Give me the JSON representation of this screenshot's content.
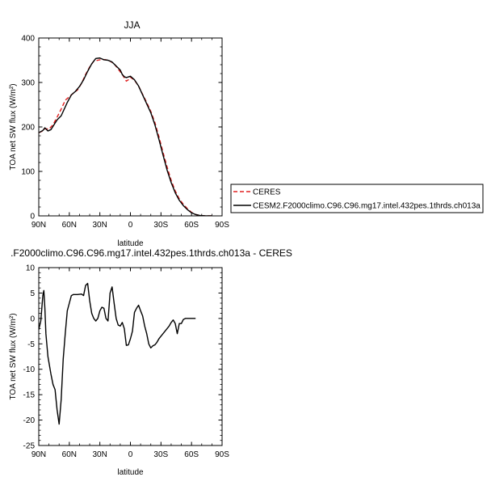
{
  "chart_data": [
    {
      "type": "line",
      "title": "JJA",
      "xlabel": "latitude",
      "ylabel": "TOA net SW flux (W/m²)",
      "x_ticks": [
        "90N",
        "60N",
        "30N",
        "0",
        "30S",
        "60S",
        "90S"
      ],
      "x_tick_values": [
        90,
        60,
        30,
        0,
        -30,
        -60,
        -90
      ],
      "y_ticks": [
        "0",
        "100",
        "200",
        "300",
        "400"
      ],
      "xlim": [
        90,
        -90
      ],
      "ylim": [
        0,
        400
      ],
      "legend_position": "right",
      "series": [
        {
          "name": "CERES",
          "color": "#e02020",
          "dash": "dashed",
          "points": [
            [
              90,
              187
            ],
            [
              86,
              191
            ],
            [
              84,
              196
            ],
            [
              80,
              195
            ],
            [
              76,
              205
            ],
            [
              72,
              222
            ],
            [
              68,
              240
            ],
            [
              64,
              260
            ],
            [
              60,
              268
            ],
            [
              56,
              276
            ],
            [
              52,
              283
            ],
            [
              48,
              298
            ],
            [
              44,
              318
            ],
            [
              40,
              335
            ],
            [
              36,
              348
            ],
            [
              32,
              350
            ],
            [
              28,
              352
            ],
            [
              24,
              351
            ],
            [
              20,
              348
            ],
            [
              16,
              342
            ],
            [
              12,
              330
            ],
            [
              8,
              318
            ],
            [
              4,
              303
            ],
            [
              2,
              306
            ],
            [
              0,
              312
            ],
            [
              -4,
              305
            ],
            [
              -8,
              292
            ],
            [
              -12,
              273
            ],
            [
              -16,
              255
            ],
            [
              -20,
              235
            ],
            [
              -24,
              210
            ],
            [
              -28,
              178
            ],
            [
              -32,
              143
            ],
            [
              -36,
              110
            ],
            [
              -40,
              80
            ],
            [
              -44,
              56
            ],
            [
              -48,
              38
            ],
            [
              -52,
              26
            ],
            [
              -56,
              16
            ],
            [
              -60,
              8
            ],
            [
              -64,
              3
            ],
            [
              -68,
              1
            ],
            [
              -74,
              0
            ],
            [
              -80,
              0
            ]
          ]
        },
        {
          "name": "CESM2.F2000climo.C96.C96.mg17.intel.432pes.1thrds.ch013a",
          "color": "#000000",
          "dash": "solid",
          "points": [
            [
              90,
              187
            ],
            [
              86,
              192
            ],
            [
              84,
              198
            ],
            [
              81,
              191
            ],
            [
              78,
              194
            ],
            [
              75,
              205
            ],
            [
              72,
              216
            ],
            [
              68,
              225
            ],
            [
              66,
              235
            ],
            [
              62,
              255
            ],
            [
              58,
              272
            ],
            [
              54,
              280
            ],
            [
              50,
              291
            ],
            [
              46,
              306
            ],
            [
              42,
              325
            ],
            [
              38,
              342
            ],
            [
              34,
              354
            ],
            [
              30,
              355
            ],
            [
              26,
              351
            ],
            [
              22,
              350
            ],
            [
              18,
              346
            ],
            [
              14,
              337
            ],
            [
              10,
              328
            ],
            [
              8,
              318
            ],
            [
              6,
              313
            ],
            [
              4,
              311
            ],
            [
              0,
              314
            ],
            [
              -4,
              306
            ],
            [
              -8,
              292
            ],
            [
              -12,
              272
            ],
            [
              -16,
              252
            ],
            [
              -20,
              232
            ],
            [
              -24,
              205
            ],
            [
              -28,
              172
            ],
            [
              -32,
              137
            ],
            [
              -36,
              103
            ],
            [
              -40,
              75
            ],
            [
              -44,
              52
            ],
            [
              -48,
              35
            ],
            [
              -52,
              23
            ],
            [
              -56,
              14
            ],
            [
              -60,
              7
            ],
            [
              -64,
              3
            ],
            [
              -68,
              1
            ],
            [
              -74,
              0
            ],
            [
              -80,
              0
            ]
          ]
        }
      ]
    },
    {
      "type": "line",
      "title": ".F2000climo.C96.C96.mg17.intel.432pes.1thrds.ch013a - CERES",
      "xlabel": "latitude",
      "ylabel": "TOA net SW flux (W/m²)",
      "x_ticks": [
        "90N",
        "60N",
        "30N",
        "0",
        "30S",
        "60S",
        "90S"
      ],
      "x_tick_values": [
        90,
        60,
        30,
        0,
        -30,
        -60,
        -90
      ],
      "y_ticks": [
        "10",
        "5",
        "0",
        "-5",
        "-10",
        "-15",
        "-20",
        "-25"
      ],
      "xlim": [
        90,
        -90
      ],
      "ylim": [
        -25,
        10
      ],
      "series": [
        {
          "color": "#000000",
          "dash": "solid",
          "points": [
            [
              90,
              -2.2
            ],
            [
              88,
              -0.5
            ],
            [
              86,
              4.5
            ],
            [
              85,
              5.5
            ],
            [
              84,
              2
            ],
            [
              83,
              -3
            ],
            [
              81,
              -7.5
            ],
            [
              78,
              -11
            ],
            [
              76,
              -13
            ],
            [
              74,
              -14
            ],
            [
              72,
              -18
            ],
            [
              70,
              -20.8
            ],
            [
              68,
              -16
            ],
            [
              66,
              -8
            ],
            [
              64,
              -3
            ],
            [
              62,
              1.5
            ],
            [
              60,
              3
            ],
            [
              58,
              4.5
            ],
            [
              56,
              4.7
            ],
            [
              52,
              4.7
            ],
            [
              48,
              4.8
            ],
            [
              46,
              4.5
            ],
            [
              44,
              6.5
            ],
            [
              42,
              6.9
            ],
            [
              40,
              3.5
            ],
            [
              38,
              1
            ],
            [
              36,
              0
            ],
            [
              34,
              -0.5
            ],
            [
              32,
              0
            ],
            [
              30,
              1.5
            ],
            [
              28,
              2.2
            ],
            [
              26,
              2
            ],
            [
              24,
              0
            ],
            [
              22,
              -0.5
            ],
            [
              20,
              5
            ],
            [
              18,
              6.2
            ],
            [
              16,
              3
            ],
            [
              14,
              0
            ],
            [
              12,
              -1.3
            ],
            [
              10,
              -1.5
            ],
            [
              8,
              -0.8
            ],
            [
              6,
              -2
            ],
            [
              4,
              -5.3
            ],
            [
              2,
              -5.2
            ],
            [
              0,
              -4
            ],
            [
              -2,
              -2.5
            ],
            [
              -4,
              1.2
            ],
            [
              -6,
              2
            ],
            [
              -8,
              2.6
            ],
            [
              -10,
              1.5
            ],
            [
              -12,
              0.5
            ],
            [
              -14,
              -1.5
            ],
            [
              -16,
              -3
            ],
            [
              -18,
              -5
            ],
            [
              -20,
              -5.8
            ],
            [
              -22,
              -5.4
            ],
            [
              -24,
              -5.2
            ],
            [
              -26,
              -4.7
            ],
            [
              -28,
              -4
            ],
            [
              -30,
              -3.5
            ],
            [
              -32,
              -3
            ],
            [
              -34,
              -2.5
            ],
            [
              -36,
              -2
            ],
            [
              -38,
              -1.5
            ],
            [
              -40,
              -0.8
            ],
            [
              -42,
              -0.3
            ],
            [
              -44,
              -1
            ],
            [
              -46,
              -3
            ],
            [
              -48,
              -1
            ],
            [
              -50,
              -1
            ],
            [
              -52,
              -0.2
            ],
            [
              -54,
              0
            ],
            [
              -58,
              0
            ],
            [
              -62,
              0
            ],
            [
              -64,
              0
            ]
          ]
        }
      ]
    }
  ]
}
